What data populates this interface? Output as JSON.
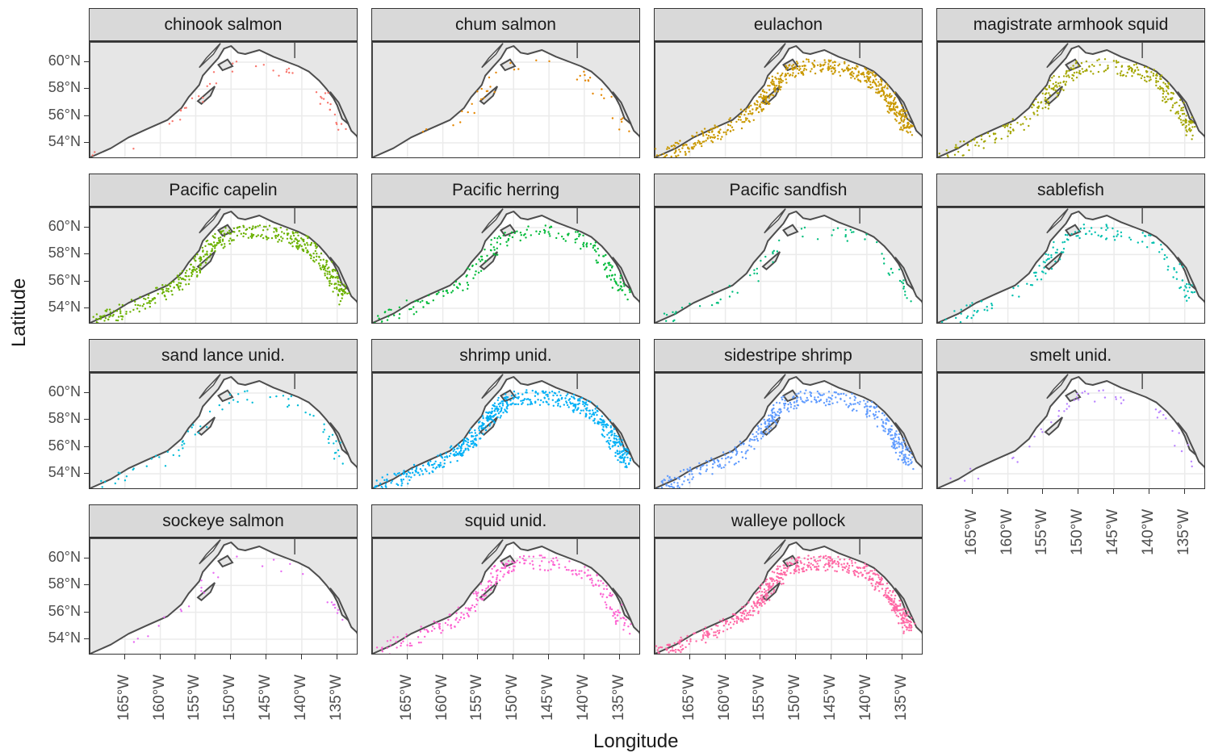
{
  "axis_labels": {
    "x": "Longitude",
    "y": "Latitude"
  },
  "y_ticks": [
    "60°N",
    "58°N",
    "56°N",
    "54°N"
  ],
  "x_ticks": [
    "165°W",
    "160°W",
    "155°W",
    "150°W",
    "145°W",
    "140°W",
    "135°W"
  ],
  "colors": {
    "land": "#e6e6e6",
    "coast": "#4d4d4d",
    "grid": "#ebebeb",
    "strip_bg": "#d9d9d9"
  },
  "chart_data": {
    "type": "map-facets",
    "extent": {
      "lon": [
        -170,
        -132
      ],
      "lat": [
        52.8,
        61.5
      ]
    },
    "facets": [
      {
        "name": "chinook salmon",
        "color": "#f8766d",
        "density": 0.08
      },
      {
        "name": "chum salmon",
        "color": "#e58700",
        "density": 0.07
      },
      {
        "name": "eulachon",
        "color": "#c99800",
        "density": 1.0
      },
      {
        "name": "magistrate armhook squid",
        "color": "#a3a500",
        "density": 0.55
      },
      {
        "name": "Pacific capelin",
        "color": "#6bb100",
        "density": 0.8
      },
      {
        "name": "Pacific herring",
        "color": "#00ba38",
        "density": 0.35
      },
      {
        "name": "Pacific sandfish",
        "color": "#00bf7d",
        "density": 0.12
      },
      {
        "name": "sablefish",
        "color": "#00c0af",
        "density": 0.25
      },
      {
        "name": "sand lance unid.",
        "color": "#00bcd8",
        "density": 0.12
      },
      {
        "name": "shrimp unid.",
        "color": "#00b0f6",
        "density": 1.0
      },
      {
        "name": "sidestripe shrimp",
        "color": "#619cff",
        "density": 0.75
      },
      {
        "name": "smelt unid.",
        "color": "#b983ff",
        "density": 0.08
      },
      {
        "name": "sockeye salmon",
        "color": "#e76bf3",
        "density": 0.05
      },
      {
        "name": "squid unid.",
        "color": "#fd61d1",
        "density": 0.45
      },
      {
        "name": "walleye pollock",
        "color": "#ff67a4",
        "density": 1.0
      }
    ]
  }
}
